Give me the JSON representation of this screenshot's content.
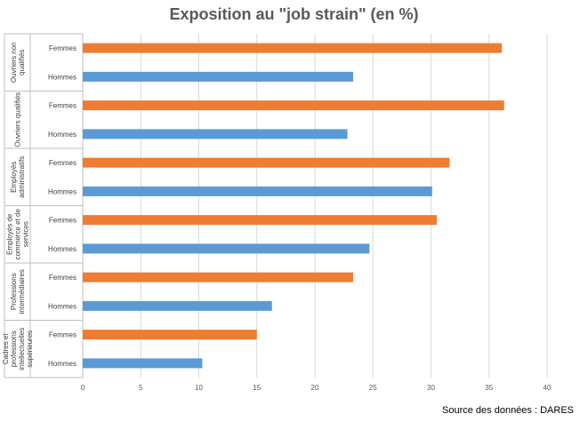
{
  "title": "Exposition au \"job strain\" (en %)",
  "source": "Source des données : DARES",
  "colors": {
    "femmes": "#ED7D31",
    "hommes": "#5B9BD5",
    "grid": "#D9D9D9",
    "axis": "#BFBFBF"
  },
  "chart_data": {
    "type": "bar",
    "orientation": "horizontal",
    "xlim": [
      0,
      40
    ],
    "xticks": [
      "0",
      "5",
      "10",
      "15",
      "20",
      "25",
      "30",
      "35",
      "40"
    ],
    "grid": true,
    "groups": [
      {
        "label": [
          "Ouvriers non",
          "qualifiés"
        ],
        "bars": [
          {
            "name": "Femmes",
            "value": 36.1
          },
          {
            "name": "Hommes",
            "value": 23.3
          }
        ]
      },
      {
        "label": [
          "Ouvriers qualifiés"
        ],
        "bars": [
          {
            "name": "Femmes",
            "value": 36.3
          },
          {
            "name": "Hommes",
            "value": 22.8
          }
        ]
      },
      {
        "label": [
          "Employés",
          "administratifs"
        ],
        "bars": [
          {
            "name": "Femmes",
            "value": 31.6
          },
          {
            "name": "Hommes",
            "value": 30.1
          }
        ]
      },
      {
        "label": [
          "Employés de",
          "commerce et de",
          "services"
        ],
        "bars": [
          {
            "name": "Femmes",
            "value": 30.5
          },
          {
            "name": "Hommes",
            "value": 24.7
          }
        ]
      },
      {
        "label": [
          "Professions",
          "intermédiaires"
        ],
        "bars": [
          {
            "name": "Femmes",
            "value": 23.3
          },
          {
            "name": "Hommes",
            "value": 16.3
          }
        ]
      },
      {
        "label": [
          "Cadres et",
          "professions",
          "intellectuelles",
          "supérieures"
        ],
        "bars": [
          {
            "name": "Femmes",
            "value": 15.0
          },
          {
            "name": "Hommes",
            "value": 10.3
          }
        ]
      }
    ]
  }
}
